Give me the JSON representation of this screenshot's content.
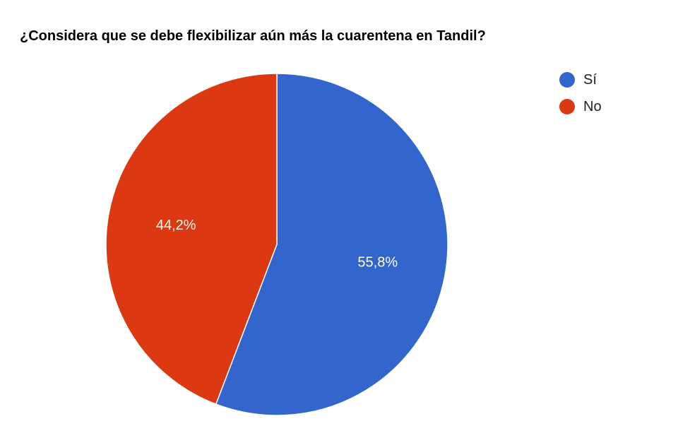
{
  "chart_data": {
    "type": "pie",
    "title": "¿Considera que se debe flexibilizar aún más la cuarentena en Tandil?",
    "slices": [
      {
        "label": "Sí",
        "value": 55.8,
        "display": "55,8%",
        "color": "#3366cc"
      },
      {
        "label": "No",
        "value": 44.2,
        "display": "44,2%",
        "color": "#dc3912"
      }
    ],
    "legend_position": "top-right"
  }
}
